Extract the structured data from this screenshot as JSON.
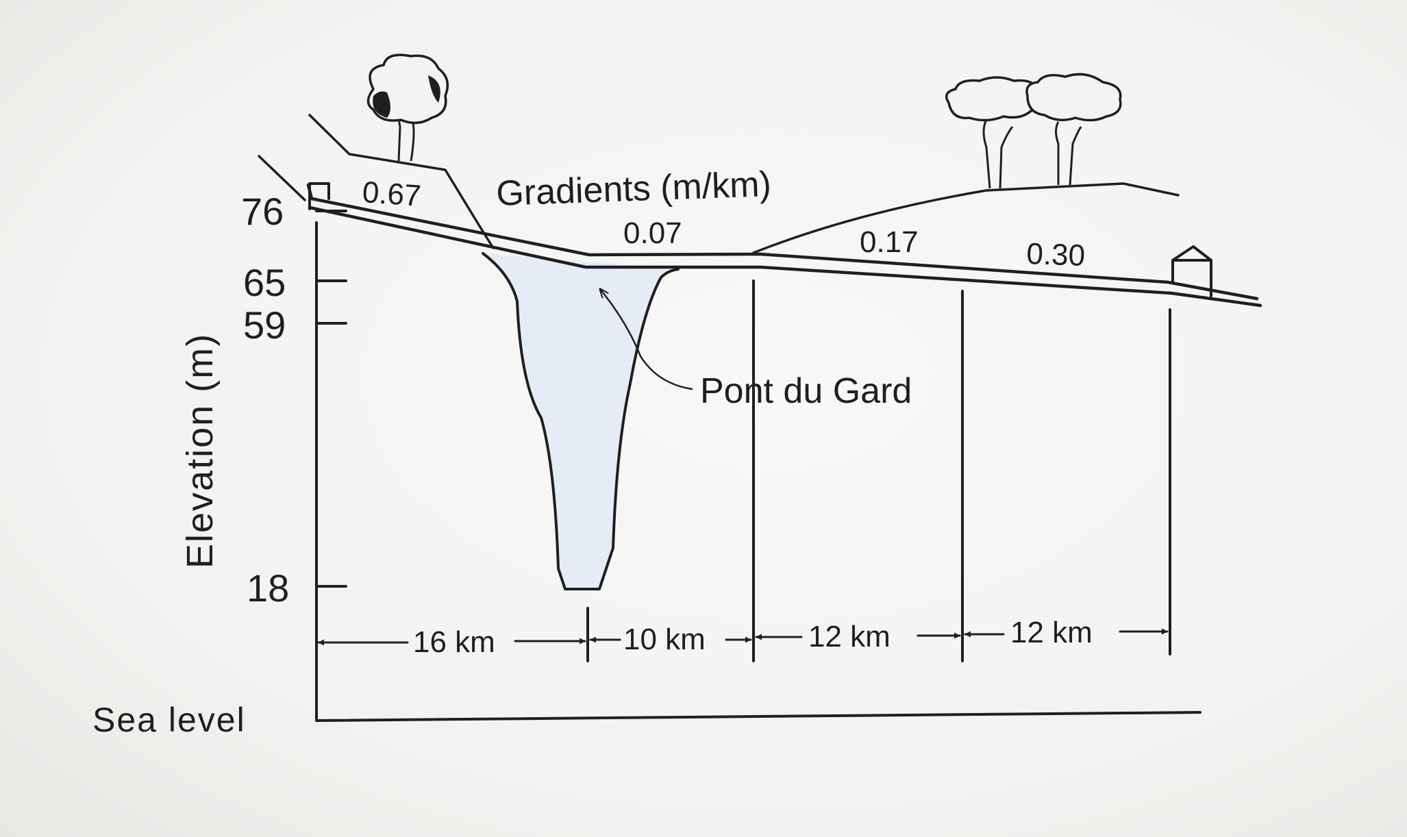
{
  "diagram": {
    "title": "Gradients (m/km)",
    "y_axis_label": "Elevation (m)",
    "sea_level_label": "Sea level",
    "elevation_ticks": [
      "76",
      "65",
      "59",
      "18"
    ],
    "gradients": [
      "0.67",
      "0.07",
      "0.17",
      "0.30"
    ],
    "callout": "Pont du Gard",
    "distances": [
      "16 km",
      "10 km",
      "12 km",
      "12 km"
    ]
  }
}
